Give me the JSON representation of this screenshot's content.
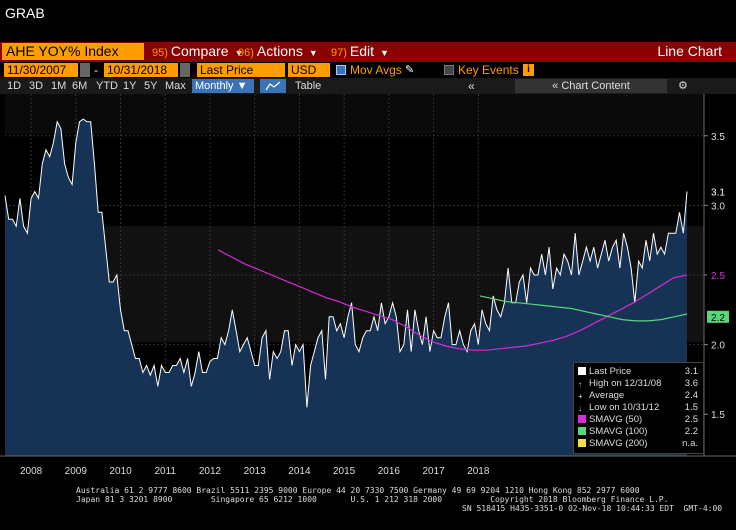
{
  "window_title": "GRAB",
  "toolbar": {
    "ticker": "AHE YOY% Index",
    "compare": {
      "num": "95)",
      "label": "Compare"
    },
    "actions": {
      "num": "96)",
      "label": "Actions"
    },
    "edit": {
      "num": "97)",
      "label": "Edit"
    },
    "view_label": "Line Chart"
  },
  "settings": {
    "start_date": "11/30/2007",
    "end_date": "10/31/2018",
    "field": "Last Price",
    "currency": "USD",
    "mov_avgs": "Mov Avgs",
    "key_events": "Key Events"
  },
  "periods": [
    "1D",
    "3D",
    "1M",
    "6M",
    "YTD",
    "1Y",
    "5Y",
    "Max"
  ],
  "frequency": "Monthly",
  "table_label": "Table",
  "chart_content_label": "Chart Content",
  "colors": {
    "price": "#ffffff",
    "area": "#17365a",
    "sma50": "#d62bd6",
    "sma100": "#59d67a",
    "sma200": "#f0e040",
    "accent": "#ff9c00",
    "menubar": "#8b0000"
  },
  "chart_data": {
    "type": "line",
    "x_range": [
      "2007-11",
      "2018-10"
    ],
    "ylim": [
      1.2,
      3.8
    ],
    "y_ticks": [
      "1.5",
      "2.0",
      "2.5",
      "3.0",
      "3.5"
    ],
    "x_ticks": [
      "2008",
      "2009",
      "2010",
      "2011",
      "2012",
      "2013",
      "2014",
      "2015",
      "2016",
      "2017",
      "2018"
    ],
    "series": [
      {
        "name": "Last Price",
        "values": [
          3.07,
          2.9,
          2.9,
          2.85,
          3.05,
          2.85,
          2.8,
          3.05,
          3.1,
          3.05,
          3.3,
          3.4,
          3.35,
          3.45,
          3.6,
          3.55,
          3.3,
          3.2,
          3.15,
          3.45,
          3.6,
          3.62,
          3.6,
          3.6,
          3.3,
          2.95,
          2.95,
          2.7,
          2.45,
          2.45,
          2.5,
          2.25,
          2.1,
          2.1,
          2.0,
          1.9,
          1.9,
          1.8,
          1.85,
          1.78,
          1.85,
          1.7,
          1.85,
          1.8,
          1.8,
          1.85,
          1.85,
          1.9,
          1.8,
          1.9,
          1.7,
          1.8,
          1.95,
          1.8,
          1.8,
          1.88,
          1.9,
          1.9,
          2.05,
          2.0,
          2.1,
          2.25,
          2.1,
          1.95,
          2.0,
          2.05,
          1.95,
          1.85,
          1.85,
          2.05,
          2.1,
          1.75,
          1.95,
          1.9,
          1.95,
          2.1,
          2.1,
          1.85,
          2.0,
          1.95,
          2.0,
          1.55,
          1.85,
          1.95,
          2.05,
          2.1,
          1.75,
          2.2,
          2.2,
          2.1,
          2.15,
          2.05,
          2.2,
          2.3,
          2.0,
          1.95,
          2.05,
          2.1,
          2.1,
          2.2,
          2.1,
          2.3,
          2.15,
          2.2,
          2.3,
          2.2,
          1.95,
          2.0,
          2.25,
          1.95,
          2.25,
          2.1,
          2.0,
          2.2,
          1.95,
          2.1,
          2.05,
          2.05,
          2.2,
          2.3,
          2.0,
          2.0,
          2.1,
          2.0,
          1.95,
          2.1,
          2.15,
          2.0,
          2.25,
          2.15,
          2.1,
          2.35,
          2.25,
          2.2,
          2.3,
          2.55,
          2.3,
          2.3,
          2.45,
          2.5,
          2.3,
          2.55,
          2.5,
          2.5,
          2.65,
          2.5,
          2.7,
          2.4,
          2.55,
          2.5,
          2.65,
          2.6,
          2.5,
          2.8,
          2.5,
          2.6,
          2.7,
          2.6,
          2.7,
          2.55,
          2.65,
          2.75,
          2.6,
          2.7,
          2.75,
          2.55,
          2.8,
          2.7,
          2.55,
          2.3,
          2.6,
          2.55,
          2.75,
          2.6,
          2.8,
          2.65,
          2.7,
          2.65,
          2.8,
          2.8,
          2.8,
          2.95,
          2.8,
          3.1
        ]
      },
      {
        "name": "SMAVG (50)",
        "values": [
          2.68,
          2.63,
          2.58,
          2.54,
          2.5,
          2.46,
          2.42,
          2.38,
          2.34,
          2.31,
          2.27,
          2.24,
          2.21,
          2.18,
          2.13,
          2.07,
          2.02,
          1.99,
          1.97,
          1.96,
          1.96,
          1.97,
          1.98,
          1.99,
          2.01,
          2.03,
          2.06,
          2.1,
          2.15,
          2.2,
          2.25,
          2.3,
          2.36,
          2.42,
          2.48,
          2.5
        ]
      },
      {
        "name": "SMAVG (100)",
        "values": [
          2.35,
          2.33,
          2.31,
          2.3,
          2.29,
          2.28,
          2.27,
          2.26,
          2.24,
          2.22,
          2.2,
          2.18,
          2.17,
          2.17,
          2.18,
          2.2,
          2.22
        ]
      },
      {
        "name": "SMAVG (200)",
        "values": []
      }
    ],
    "last_value_label": "3.1",
    "sma50_label": "2.5",
    "sma100_label": "2.2",
    "legend_placement": "bottom-right"
  },
  "legend": {
    "items": [
      {
        "label": "Last Price",
        "value": "3.1"
      },
      {
        "label": "High on 12/31/08",
        "value": "3.6"
      },
      {
        "label": "Average",
        "value": "2.4"
      },
      {
        "label": "Low on 10/31/12",
        "value": "1.5"
      },
      {
        "label": "SMAVG (50)",
        "value": "2.5"
      },
      {
        "label": "SMAVG (100)",
        "value": "2.2"
      },
      {
        "label": "SMAVG (200)",
        "value": "n.a."
      }
    ]
  },
  "footer": {
    "line1": "Australia 61 2 9777 8600 Brazil 5511 2395 9000 Europe 44 20 7330 7500 Germany 49 69 9204 1210 Hong Kong 852 2977 6000",
    "line2": "Japan 81 3 3201 8900        Singapore 65 6212 1000       U.S. 1 212 318 2000          Copyright 2018 Bloomberg Finance L.P.",
    "line3": "SN 518415 H435-3351-0 02-Nov-18 10:44:33 EDT  GMT-4:00"
  }
}
